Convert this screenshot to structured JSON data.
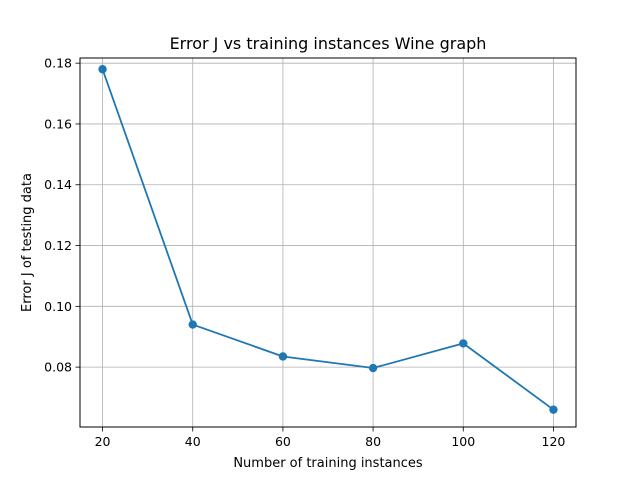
{
  "chart_data": {
    "type": "line",
    "title": "Error J vs training instances Wine graph",
    "xlabel": "Number of training instances",
    "ylabel": "Error J of testing data",
    "x": [
      20,
      40,
      60,
      80,
      100,
      120
    ],
    "series": [
      {
        "values": [
          0.178,
          0.094,
          0.0835,
          0.0797,
          0.0878,
          0.066
        ],
        "color": "#1f77b4",
        "marker": "circle"
      }
    ],
    "xlim": [
      15,
      125
    ],
    "ylim": [
      0.0603,
      0.1817
    ],
    "xticks": [
      20,
      40,
      60,
      80,
      100,
      120
    ],
    "xtick_labels": [
      "20",
      "40",
      "60",
      "80",
      "100",
      "120"
    ],
    "yticks": [
      0.08,
      0.1,
      0.12,
      0.14,
      0.16,
      0.18
    ],
    "ytick_labels": [
      "0.08",
      "0.10",
      "0.12",
      "0.14",
      "0.16",
      "0.18"
    ],
    "grid": true,
    "legend": false
  }
}
